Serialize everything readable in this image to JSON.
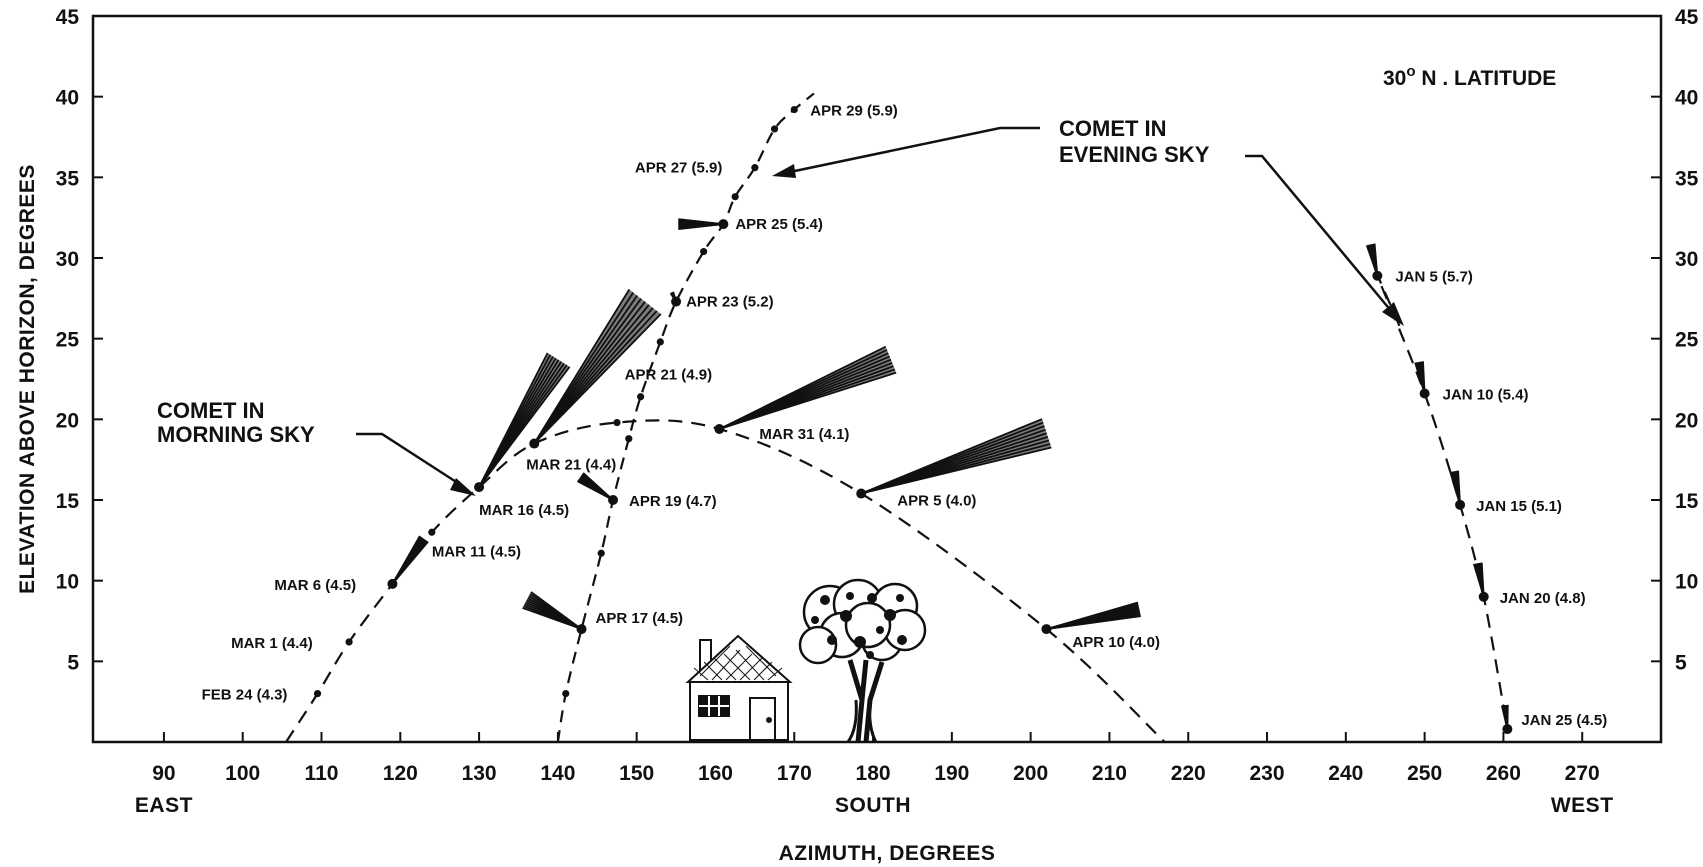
{
  "chart_data": {
    "type": "scatter",
    "title": "",
    "xlabel": "AZIMUTH, DEGREES",
    "ylabel": "ELEVATION ABOVE HORIZON, DEGREES",
    "xlim": [
      81,
      280
    ],
    "ylim": [
      0,
      45
    ],
    "x_ticks": [
      90,
      100,
      110,
      120,
      130,
      140,
      150,
      160,
      170,
      180,
      190,
      200,
      210,
      220,
      230,
      240,
      250,
      260,
      270
    ],
    "y_ticks": [
      5,
      10,
      15,
      20,
      25,
      30,
      35,
      40,
      45
    ],
    "direction_labels": [
      {
        "text": "EAST",
        "azimuth": 90
      },
      {
        "text": "SOUTH",
        "azimuth": 180
      },
      {
        "text": "WEST",
        "azimuth": 270
      }
    ],
    "latitude_note": {
      "prefix": "30",
      "degree": "o",
      "suffix": " N . LATITUDE"
    },
    "annotations": {
      "morning": [
        "COMET IN",
        "MORNING SKY"
      ],
      "evening": [
        "COMET IN",
        "EVENING SKY"
      ]
    },
    "grid": false,
    "series": [
      {
        "name": "COMET IN MORNING SKY",
        "points": [
          {
            "label": "FEB 24 (4.3)",
            "x": 109.5,
            "y": 3.0,
            "tail": false
          },
          {
            "label": "MAR 1 (4.4)",
            "x": 113.5,
            "y": 6.2,
            "tail": false
          },
          {
            "label": "MAR 6 (4.5)",
            "x": 119.0,
            "y": 9.8,
            "tail": true
          },
          {
            "label": "MAR 11 (4.5)",
            "x": 124.0,
            "y": 13.0,
            "tail": false
          },
          {
            "label": "MAR 16 (4.5)",
            "x": 130.0,
            "y": 15.8,
            "tail": true
          },
          {
            "label": "MAR 21 (4.4)",
            "x": 137.0,
            "y": 18.5,
            "tail": true
          },
          {
            "label": "",
            "x": 147.5,
            "y": 19.8,
            "tail": false
          },
          {
            "label": "MAR 31 (4.1)",
            "x": 160.5,
            "y": 19.4,
            "tail": true
          },
          {
            "label": "APR 5 (4.0)",
            "x": 178.5,
            "y": 15.4,
            "tail": true
          },
          {
            "label": "APR 10 (4.0)",
            "x": 202.0,
            "y": 7.0,
            "tail": true
          }
        ]
      },
      {
        "name": "COMET IN EVENING SKY",
        "points": [
          {
            "label": "",
            "x": 141.0,
            "y": 3.0,
            "tail": false
          },
          {
            "label": "APR 17 (4.5)",
            "x": 143.0,
            "y": 7.0,
            "tail": true
          },
          {
            "label": "",
            "x": 145.5,
            "y": 11.7,
            "tail": false
          },
          {
            "label": "APR 19 (4.7)",
            "x": 147.0,
            "y": 15.0,
            "tail": true
          },
          {
            "label": "",
            "x": 149.0,
            "y": 18.8,
            "tail": false
          },
          {
            "label": "APR 21 (4.9)",
            "x": 150.5,
            "y": 21.4,
            "tail": false
          },
          {
            "label": "",
            "x": 153.0,
            "y": 24.8,
            "tail": false
          },
          {
            "label": "APR 23 (5.2)",
            "x": 155.0,
            "y": 27.3,
            "tail": true
          },
          {
            "label": "",
            "x": 158.5,
            "y": 30.4,
            "tail": false
          },
          {
            "label": "APR 25 (5.4)",
            "x": 161.0,
            "y": 32.1,
            "tail": true
          },
          {
            "label": "",
            "x": 162.5,
            "y": 33.8,
            "tail": false
          },
          {
            "label": "APR 27 (5.9)",
            "x": 165.0,
            "y": 35.6,
            "tail": false
          },
          {
            "label": "",
            "x": 167.5,
            "y": 38.0,
            "tail": false
          },
          {
            "label": "APR 29 (5.9)",
            "x": 170.0,
            "y": 39.2,
            "tail": false
          },
          {
            "label": "JAN 5 (5.7)",
            "x": 244.0,
            "y": 28.9,
            "tail": true
          },
          {
            "label": "JAN 10 (5.4)",
            "x": 250.0,
            "y": 21.6,
            "tail": true
          },
          {
            "label": "JAN 15 (5.1)",
            "x": 254.5,
            "y": 14.7,
            "tail": true
          },
          {
            "label": "JAN 20 (4.8)",
            "x": 257.5,
            "y": 9.0,
            "tail": true
          },
          {
            "label": "JAN 25 (4.5)",
            "x": 260.5,
            "y": 0.8,
            "tail": true
          }
        ]
      }
    ]
  }
}
